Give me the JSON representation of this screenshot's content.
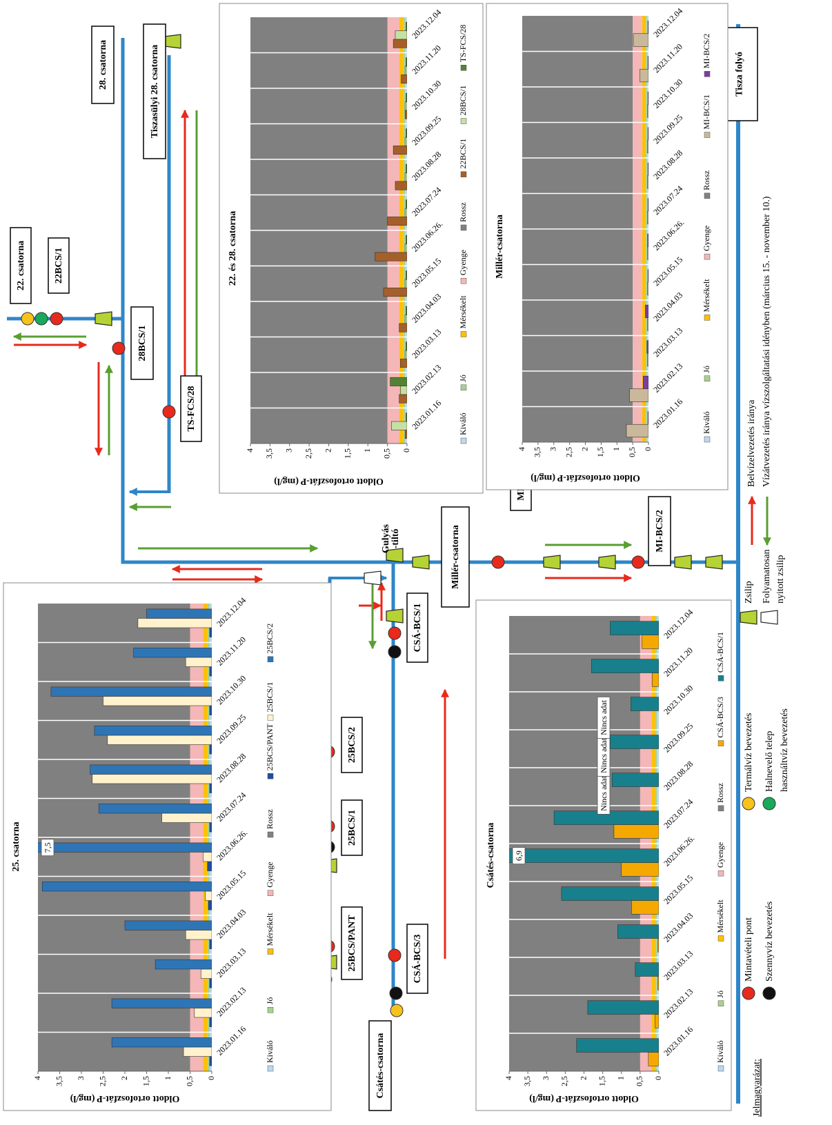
{
  "diagram": {
    "channels": [
      "25. csatorna",
      "Csátés-csatorna",
      "Millér-csatorna",
      "22. csatorna",
      "28. csatorna",
      "Tiszasülyi 28. csatorna",
      "Tisza folyó"
    ],
    "sampling_points": [
      "25BCS/PANT",
      "25BCS/1",
      "25BCS/2",
      "CSÁ-BCS/3",
      "CSÁ-BCS/1",
      "MI-BCS/1",
      "MI-BCS/2",
      "22BCS/1",
      "28BCS/1",
      "TS-FCS/28"
    ],
    "gate_name": [
      "Gulyás",
      "-tiltó"
    ]
  },
  "legend": {
    "title": "Jelmagyarázat:",
    "items": [
      "Mintavételi pont",
      "Szennyvíz bevezetés",
      "Termálvíz bevezetés",
      "Halnevelő telep",
      "használtvíz bevezetés",
      "Zsilip",
      "Folyamatosan",
      "nyitott zsilip",
      "Belvízelvezetés iránya",
      "Vízátvezetés iránya vízszolgáltatási idényben (március 15. - november 10.)"
    ]
  },
  "chart_data": [
    {
      "type": "bar",
      "title": "25. csatorna",
      "ylabel": "Oldott ortofoszfát-P (mg/l)",
      "categories": [
        "2023.01.16",
        "2023.02.13",
        "2023.03.13",
        "2023.04.03",
        "2023.05.15",
        "2023.06.26.",
        "2023.07.24",
        "2023.08.28",
        "2023.09.25",
        "2023.10.30",
        "2023.11.20",
        "2023.12.04"
      ],
      "ylim": [
        0,
        4
      ],
      "yticks": [
        0,
        {
          "value": 0.5,
          "label": "0,5"
        },
        1,
        {
          "value": 1.5,
          "label": "1,5"
        },
        2,
        {
          "value": 2.5,
          "label": "2,5"
        },
        3,
        {
          "value": 3.5,
          "label": "3,5"
        },
        4
      ],
      "bands": [
        {
          "name": "Kiváló",
          "color": "#bdd7ee",
          "value": 0.05
        },
        {
          "name": "Jó",
          "color": "#a9d18e",
          "value": 0.05
        },
        {
          "name": "Mérsékelt",
          "color": "#ffc000",
          "value": 0.1
        },
        {
          "name": "Gyenge",
          "color": "#f4b6b6",
          "value": 0.3
        },
        {
          "name": "Rossz",
          "color": "#808080",
          "value": 3.5
        }
      ],
      "series": [
        {
          "name": "25BCS/PANT",
          "color": "#1f4e9e",
          "values": [
            0.05,
            0.05,
            0.05,
            0.05,
            0.08,
            0.1,
            0.05,
            0.05,
            0.05,
            0.05,
            0.05,
            0.05
          ]
        },
        {
          "name": "25BCS/1",
          "color": "#fff2cc",
          "values": [
            0.65,
            0.4,
            0.25,
            0.6,
            0.15,
            0.2,
            1.15,
            2.75,
            2.4,
            2.5,
            0.6,
            1.7
          ]
        },
        {
          "name": "25BCS/2",
          "color": "#2e75b6",
          "values": [
            2.3,
            2.3,
            1.3,
            2.0,
            3.9,
            7.5,
            2.6,
            2.8,
            2.7,
            3.7,
            1.8,
            1.5
          ],
          "value_labels": [
            null,
            null,
            null,
            null,
            null,
            "7,5",
            null,
            null,
            null,
            null,
            null,
            null
          ]
        }
      ]
    },
    {
      "type": "bar",
      "title": "Csátés-csatorna",
      "ylabel": "Oldott ortofoszfát-P (mg/l)",
      "categories": [
        "2023.01.16",
        "2023.02.13",
        "2023.03.13",
        "2023.04.03",
        "2023.05.15",
        "2023.06.26.",
        "2023.07.24",
        "2023.08.28",
        "2023.09.25",
        "2023.10.30",
        "2023.11.20",
        "2023.12.04"
      ],
      "ylim": [
        0,
        4
      ],
      "yticks": [
        0,
        {
          "value": 0.5,
          "label": "0,5"
        },
        1,
        {
          "value": 1.5,
          "label": "1,5"
        },
        2,
        {
          "value": 2.5,
          "label": "2,5"
        },
        3,
        {
          "value": 3.5,
          "label": "3,5"
        },
        4
      ],
      "bands": [
        {
          "name": "Kiváló",
          "color": "#bdd7ee",
          "value": 0.05
        },
        {
          "name": "Jó",
          "color": "#a9d18e",
          "value": 0.05
        },
        {
          "name": "Mérsékelt",
          "color": "#ffc000",
          "value": 0.1
        },
        {
          "name": "Gyenge",
          "color": "#f4b6b6",
          "value": 0.3
        },
        {
          "name": "Rossz",
          "color": "#808080",
          "value": 3.5
        }
      ],
      "series": [
        {
          "name": "CSÁ-BCS/3",
          "color": "#f5a800",
          "values": [
            0.28,
            0.1,
            0.03,
            0.03,
            0.73,
            1.0,
            1.2,
            null,
            null,
            null,
            0.18,
            0.45
          ],
          "value_labels": [
            null,
            null,
            null,
            null,
            null,
            null,
            null,
            "Nincs adat",
            "Nincs adat",
            "Nincs adat",
            null,
            null
          ]
        },
        {
          "name": "CSÁ-BCS/1",
          "color": "#17808c",
          "values": [
            2.2,
            1.9,
            0.63,
            1.1,
            2.6,
            6.9,
            2.8,
            1.25,
            1.3,
            0.75,
            1.8,
            1.3
          ],
          "value_labels": [
            null,
            null,
            null,
            null,
            null,
            "6,9",
            null,
            null,
            null,
            null,
            null,
            null
          ]
        }
      ]
    },
    {
      "type": "bar",
      "title": "22. és 28. csatorna",
      "ylabel": "Oldott ortofoszfát-P (mg/l)",
      "categories": [
        "2023.01.16",
        "2023.02.13",
        "2023.03.13",
        "2023.04.03",
        "2023.05.15",
        "2023.06.26.",
        "2023.07.24",
        "2023.08.28",
        "2023.09.25",
        "2023.10.30",
        "2023.11.20",
        "2023.12.04"
      ],
      "ylim": [
        0,
        4
      ],
      "yticks": [
        0,
        {
          "value": 0.5,
          "label": "0,5"
        },
        1,
        {
          "value": 1.5,
          "label": "1,5"
        },
        2,
        {
          "value": 2.5,
          "label": "2,5"
        },
        3,
        {
          "value": 3.5,
          "label": "3,5"
        },
        4
      ],
      "bands": [
        {
          "name": "Kiváló",
          "color": "#bdd7ee",
          "value": 0.05
        },
        {
          "name": "Jó",
          "color": "#a9d18e",
          "value": 0.05
        },
        {
          "name": "Mérsékelt",
          "color": "#ffc000",
          "value": 0.1
        },
        {
          "name": "Gyenge",
          "color": "#f4b6b6",
          "value": 0.3
        },
        {
          "name": "Rossz",
          "color": "#808080",
          "value": 3.5
        }
      ],
      "series": [
        {
          "name": "22BCS/1",
          "color": "#a5602a",
          "values": [
            0.05,
            0.2,
            0.17,
            0.2,
            0.6,
            0.82,
            0.5,
            0.3,
            0.35,
            0.05,
            0.15,
            0.35
          ]
        },
        {
          "name": "28BCS/1",
          "color": "#c5e0a5",
          "values": [
            0.4,
            0.17,
            0.05,
            0.05,
            0.05,
            0.05,
            0.05,
            0.05,
            0.05,
            0.05,
            0.05,
            0.3
          ]
        },
        {
          "name": "TS-FCS/28",
          "color": "#548235",
          "values": [
            0.03,
            0.43,
            0.03,
            0.03,
            0.03,
            0.03,
            0.03,
            0.03,
            0.03,
            0.03,
            0.03,
            0.03
          ]
        }
      ]
    },
    {
      "type": "bar",
      "title": "Millér-csatorna",
      "ylabel": "Oldott ortofoszfát-P (mg/l)",
      "categories": [
        "2023.01.16",
        "2023.02.13",
        "2023.03.13",
        "2023.04.03",
        "2023.05.15",
        "2023.06.26.",
        "2023.07.24",
        "2023.08.28",
        "2023.09.25",
        "2023.10.30",
        "2023.11.20",
        "2023.12.04"
      ],
      "ylim": [
        0,
        4
      ],
      "yticks": [
        0,
        {
          "value": 0.5,
          "label": "0,5"
        },
        1,
        {
          "value": 1.5,
          "label": "1,5"
        },
        2,
        {
          "value": 2.5,
          "label": "2,5"
        },
        3,
        {
          "value": 3.5,
          "label": "3,5"
        },
        4
      ],
      "bands": [
        {
          "name": "Kiváló",
          "color": "#bdd7ee",
          "value": 0.05
        },
        {
          "name": "Jó",
          "color": "#a9d18e",
          "value": 0.05
        },
        {
          "name": "Mérsékelt",
          "color": "#ffc000",
          "value": 0.1
        },
        {
          "name": "Gyenge",
          "color": "#f4b6b6",
          "value": 0.3
        },
        {
          "name": "Rossz",
          "color": "#808080",
          "value": 3.5
        }
      ],
      "series": [
        {
          "name": "MI-BCS/1",
          "color": "#c9b99a",
          "values": [
            0.7,
            0.6,
            0.03,
            0.03,
            0.03,
            0.03,
            0.03,
            0.03,
            0.03,
            0.03,
            0.27,
            0.48
          ]
        },
        {
          "name": "MI-BCS/2",
          "color": "#7b3fa0",
          "values": [
            0.02,
            0.17,
            0.05,
            0.1,
            0.02,
            0.03,
            0.02,
            0.02,
            0.02,
            0.02,
            0.02,
            0.02
          ]
        }
      ]
    }
  ]
}
